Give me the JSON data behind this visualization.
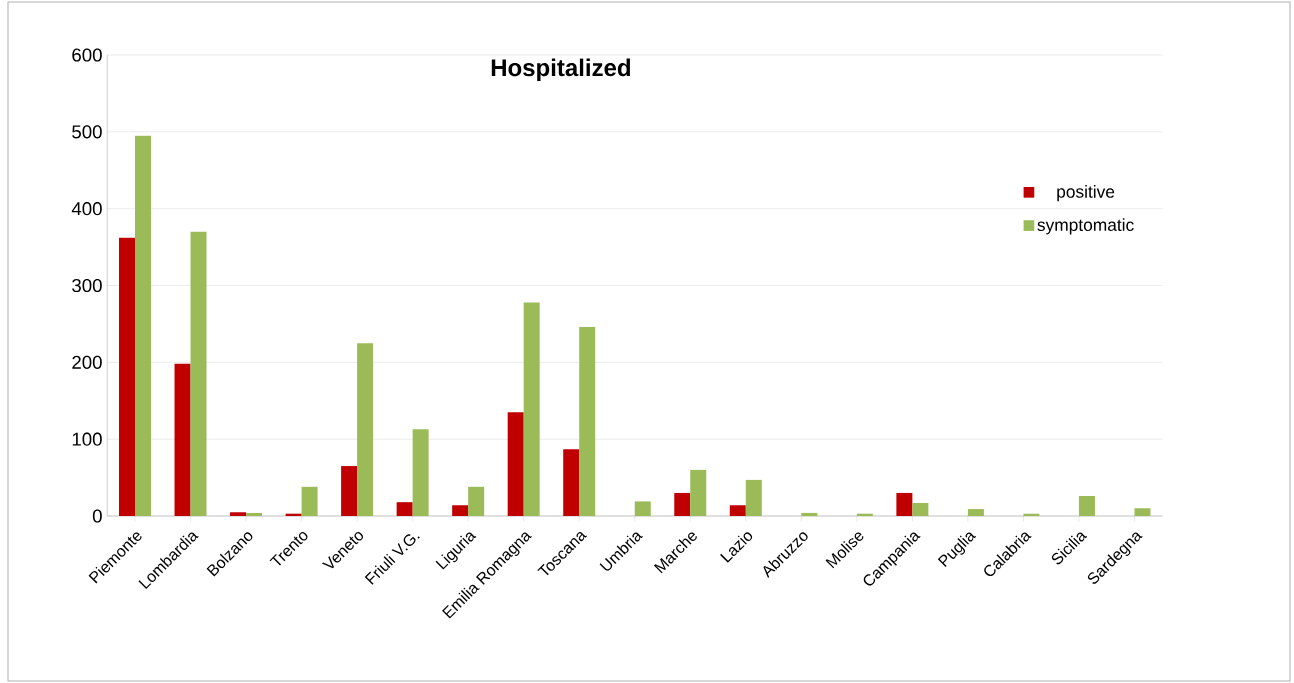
{
  "chart_data": {
    "type": "bar",
    "title": "Hospitalized",
    "categories": [
      "Piemonte",
      "Lombardia",
      "Bolzano",
      "Trento",
      "Veneto",
      "Friuli V.G.",
      "Liguria",
      "Emilia Romagna",
      "Toscana",
      "Umbria",
      "Marche",
      "Lazio",
      "Abruzzo",
      "Molise",
      "Campania",
      "Puglia",
      "Calabria",
      "Sicilia",
      "Sardegna"
    ],
    "series": [
      {
        "name": "positive",
        "color": "#c00000",
        "values": [
          362,
          198,
          5,
          3,
          65,
          18,
          14,
          135,
          87,
          0,
          30,
          14,
          0,
          0,
          30,
          0,
          0,
          0,
          0
        ]
      },
      {
        "name": "symptomatic",
        "color": "#9bbb59",
        "values": [
          495,
          370,
          4,
          38,
          225,
          113,
          38,
          278,
          246,
          19,
          60,
          47,
          4,
          3,
          17,
          9,
          3,
          26,
          10
        ]
      }
    ],
    "ylim": [
      0,
      600
    ],
    "yticks": [
      0,
      100,
      200,
      300,
      400,
      500,
      600
    ],
    "grid": "y",
    "legend": "right"
  }
}
